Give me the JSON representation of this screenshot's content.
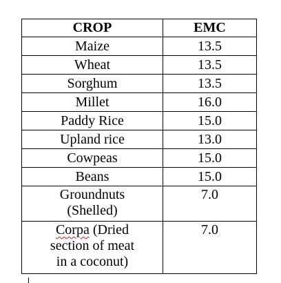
{
  "table": {
    "headers": {
      "crop": "CROP",
      "emc": "EMC"
    },
    "rows": [
      {
        "crop": "Maize",
        "emc": "13.5"
      },
      {
        "crop": "Wheat",
        "emc": "13.5"
      },
      {
        "crop": "Sorghum",
        "emc": "13.5"
      },
      {
        "crop": "Millet",
        "emc": "16.0"
      },
      {
        "crop": "Paddy Rice",
        "emc": "15.0"
      },
      {
        "crop": "Upland rice",
        "emc": "13.0"
      },
      {
        "crop": "Cowpeas",
        "emc": "15.0"
      },
      {
        "crop": "Beans",
        "emc": "15.0"
      },
      {
        "crop_lines": [
          "Groundnuts",
          "(Shelled)"
        ],
        "emc": "7.0"
      },
      {
        "crop_lines": [
          "Corpa (Dried",
          "section of meat",
          "in a coconut)"
        ],
        "emc": "7.0"
      }
    ]
  },
  "spellcheck_flags": [
    "Corpa"
  ]
}
